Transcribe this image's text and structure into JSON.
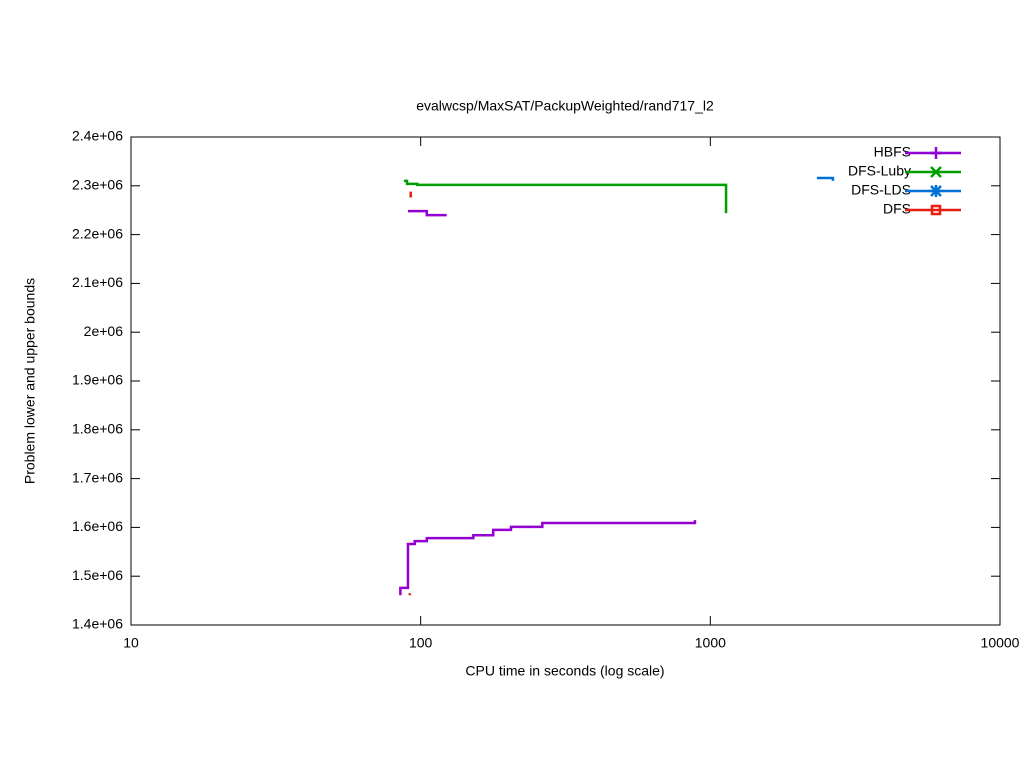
{
  "chart_data": {
    "type": "line",
    "title": "evalwcsp/MaxSAT/PackupWeighted/rand717_l2",
    "x_label": "CPU time in seconds (log scale)",
    "y_label": "Problem lower and upper bounds",
    "x_log": true,
    "step": true,
    "legend": "top-right",
    "xlim": [
      10,
      10000
    ],
    "xticks": [
      10,
      100,
      1000,
      10000
    ],
    "ylim": [
      1400000,
      2400000
    ],
    "yticks": [
      {
        "value": 1400000,
        "label": "1.4e+06"
      },
      {
        "value": 1500000,
        "label": "1.5e+06"
      },
      {
        "value": 1600000,
        "label": "1.6e+06"
      },
      {
        "value": 1700000,
        "label": "1.7e+06"
      },
      {
        "value": 1800000,
        "label": "1.8e+06"
      },
      {
        "value": 1900000,
        "label": "1.9e+06"
      },
      {
        "value": 2000000,
        "label": "2e+06"
      },
      {
        "value": 2100000,
        "label": "2.1e+06"
      },
      {
        "value": 2200000,
        "label": "2.2e+06"
      },
      {
        "value": 2300000,
        "label": "2.3e+06"
      },
      {
        "value": 2400000,
        "label": "2.4e+06"
      }
    ],
    "series": [
      {
        "name": "HBFS",
        "color": "#9400d3",
        "x": [
          90.4,
          105,
          123,
          null,
          85.1,
          85.1,
          90.4,
          95.4,
          105,
          152,
          178,
          205,
          263,
          885,
          885
        ],
        "values": [
          2248000,
          2240000,
          2240000,
          null,
          1461000,
          1476000,
          1566000,
          1572000,
          1578000,
          1584000,
          1595000,
          1601000,
          1609000,
          1609000,
          1615000
        ]
      },
      {
        "name": "DFS-Luby",
        "color": "#009e00",
        "x": [
          87.5,
          89.7,
          97.3,
          1133,
          1133
        ],
        "values": [
          2310000,
          2304000,
          2302000,
          2302000,
          2244000
        ]
      },
      {
        "name": "DFS-LDS",
        "color": "#0072d6",
        "x": [
          2333,
          2650,
          2650
        ],
        "values": [
          2316000,
          2316000,
          2310000
        ]
      },
      {
        "name": "DFS",
        "color": "#e51e10",
        "x": [
          92.4,
          92.4,
          null,
          91.7,
          91.7
        ],
        "values": [
          2288000,
          2276000,
          null,
          1465000,
          1461000
        ]
      }
    ]
  }
}
